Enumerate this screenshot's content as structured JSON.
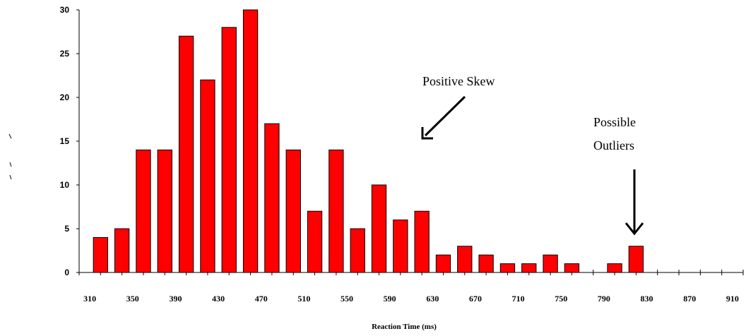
{
  "chart_data": {
    "type": "bar",
    "title": "",
    "xlabel": "Reaction Time (ms)",
    "ylabel": "",
    "ylim": [
      0,
      30
    ],
    "yticks": [
      0,
      5,
      10,
      15,
      20,
      25,
      30
    ],
    "x_tick_labels": [
      "310",
      "350",
      "390",
      "430",
      "470",
      "510",
      "550",
      "590",
      "630",
      "670",
      "710",
      "750",
      "790",
      "830",
      "870",
      "910"
    ],
    "bin_width": 20,
    "x_range": [
      300,
      920
    ],
    "bar_color": "#ff0000",
    "bars": [
      {
        "x": 330,
        "value": 4
      },
      {
        "x": 350,
        "value": 5
      },
      {
        "x": 370,
        "value": 14
      },
      {
        "x": 390,
        "value": 14
      },
      {
        "x": 410,
        "value": 27
      },
      {
        "x": 430,
        "value": 22
      },
      {
        "x": 450,
        "value": 28
      },
      {
        "x": 470,
        "value": 30
      },
      {
        "x": 490,
        "value": 17
      },
      {
        "x": 510,
        "value": 14
      },
      {
        "x": 530,
        "value": 7
      },
      {
        "x": 550,
        "value": 14
      },
      {
        "x": 570,
        "value": 5
      },
      {
        "x": 590,
        "value": 10
      },
      {
        "x": 610,
        "value": 6
      },
      {
        "x": 630,
        "value": 7
      },
      {
        "x": 650,
        "value": 2
      },
      {
        "x": 670,
        "value": 3
      },
      {
        "x": 690,
        "value": 2
      },
      {
        "x": 710,
        "value": 1
      },
      {
        "x": 730,
        "value": 1
      },
      {
        "x": 750,
        "value": 2
      },
      {
        "x": 770,
        "value": 1
      },
      {
        "x": 810,
        "value": 1
      },
      {
        "x": 830,
        "value": 3
      }
    ],
    "annotations": [
      {
        "text": "Positive Skew",
        "arrow": "down-left"
      },
      {
        "text": "Possible",
        "text2": "Outliers",
        "arrow": "down"
      }
    ],
    "grid": false,
    "legend": "none"
  }
}
